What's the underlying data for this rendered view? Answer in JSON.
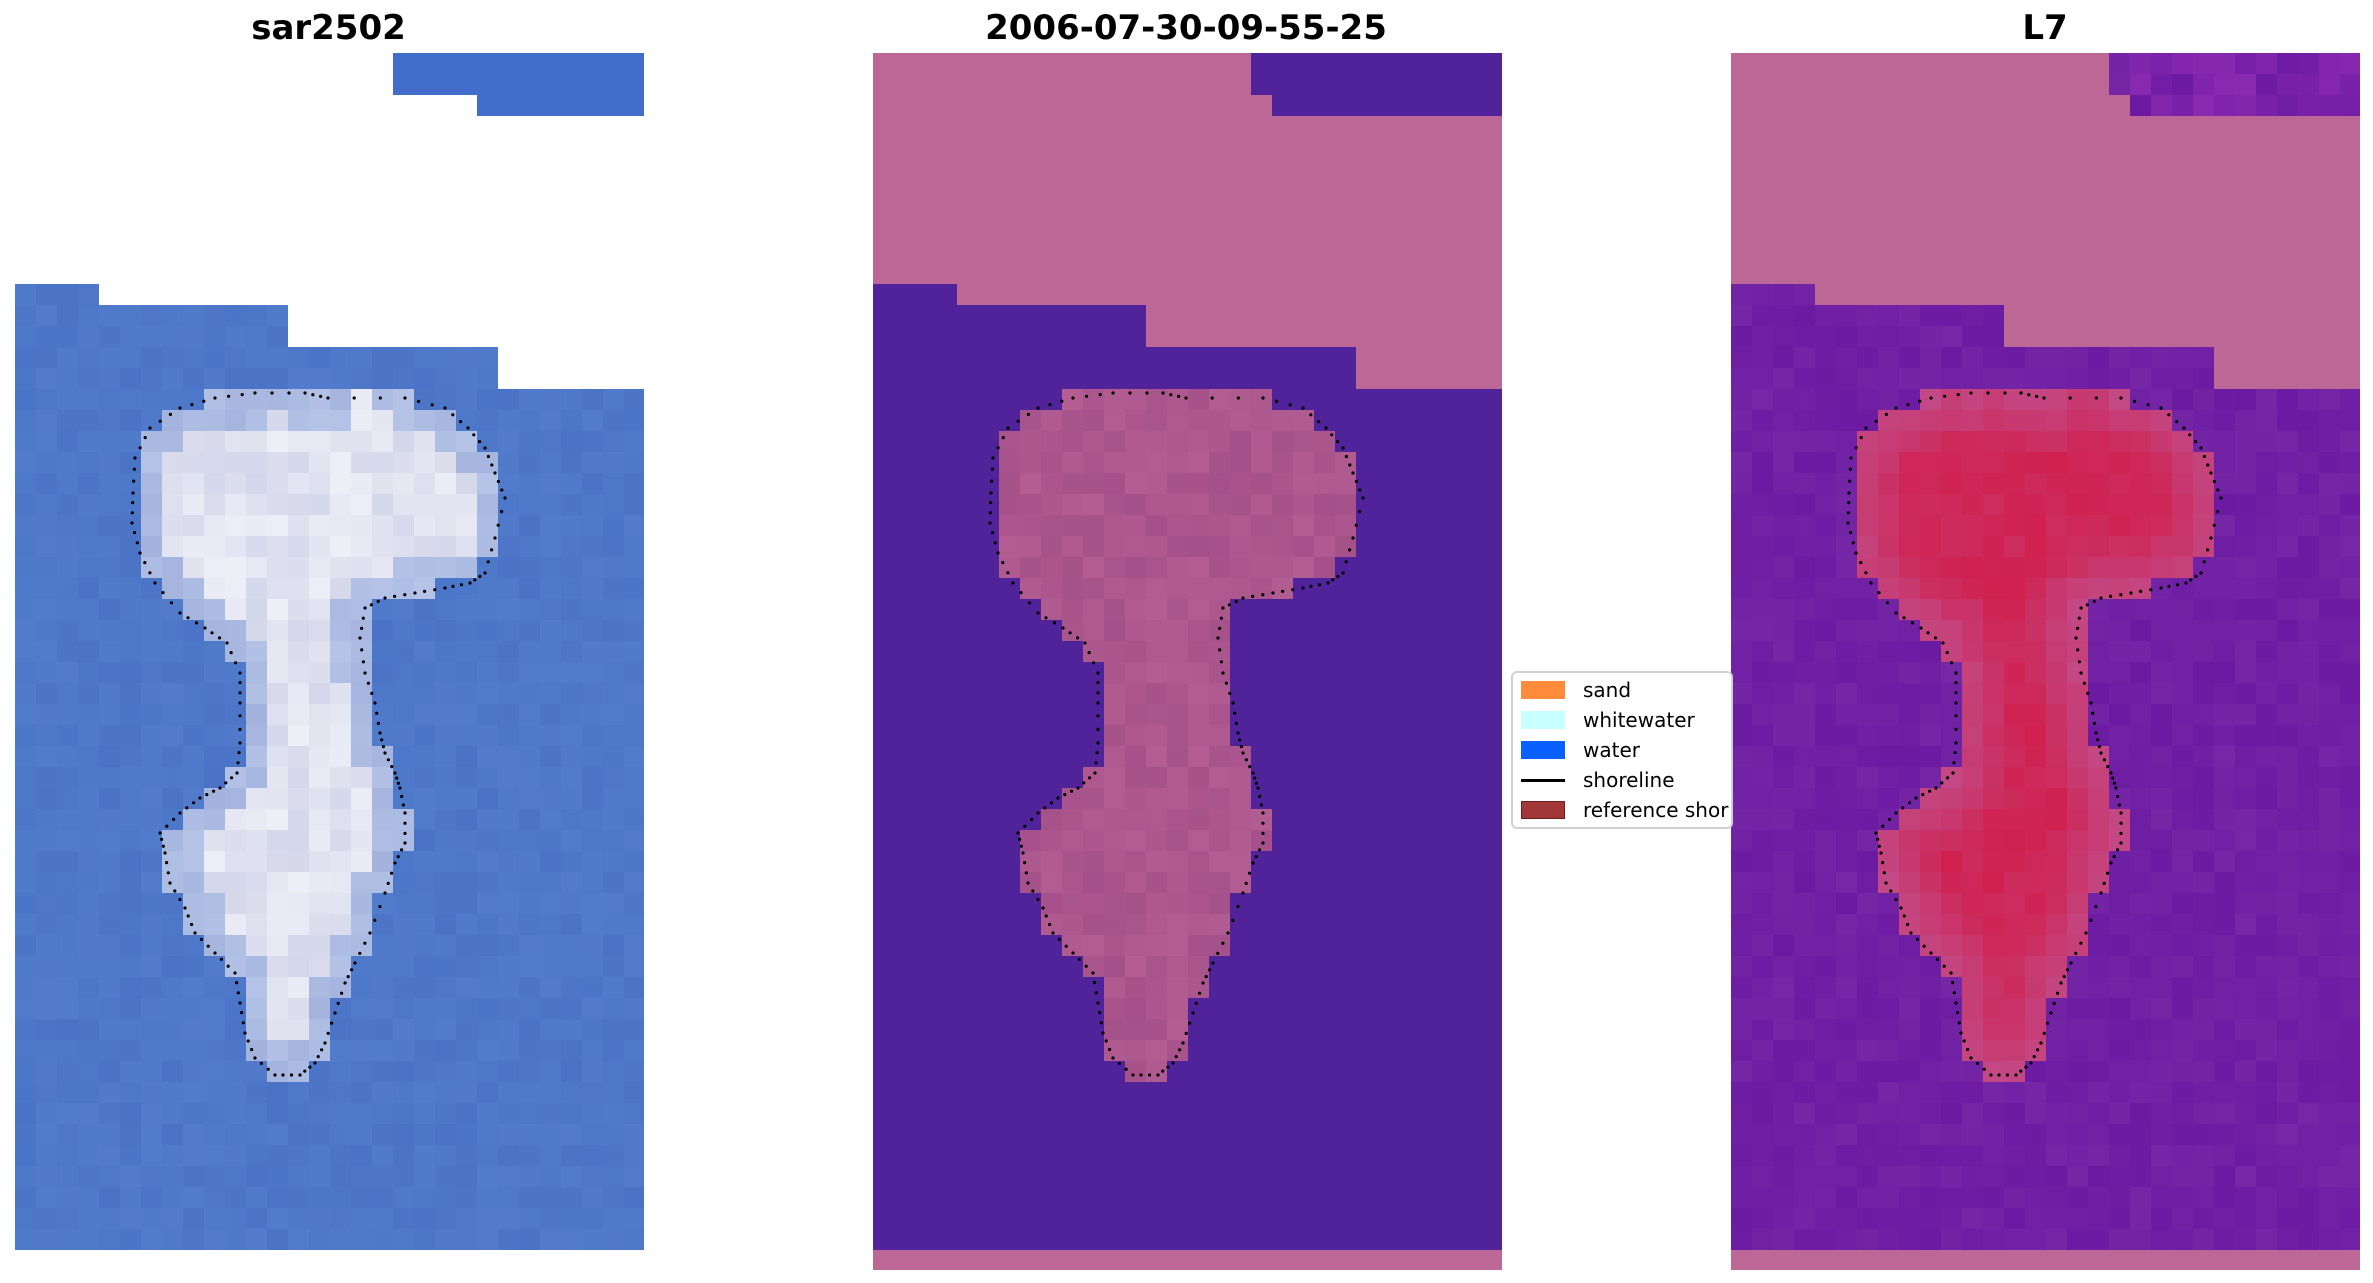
{
  "panels": [
    {
      "title": "sar2502",
      "kind": "rgb"
    },
    {
      "title": "2006-07-30-09-55-25",
      "kind": "classified"
    },
    {
      "title": "L7",
      "kind": "index"
    }
  ],
  "legend": {
    "items": [
      {
        "label": "sand",
        "color": "#ff8c3a",
        "type": "patch"
      },
      {
        "label": "whitewater",
        "color": "#c8ffff",
        "type": "patch"
      },
      {
        "label": "water",
        "color": "#0a60ff",
        "type": "patch"
      },
      {
        "label": "shoreline",
        "color": "#000000",
        "type": "line"
      },
      {
        "label": "reference shor",
        "color": "#a23737",
        "type": "patch"
      }
    ]
  },
  "colors": {
    "rgb_water": "#4a73c7",
    "rgb_cloud": "#d4d6ea",
    "class_mask": "#bd6797",
    "class_water": "#50239a",
    "class_land": "#a4508a",
    "index_low": "#6b1aa2",
    "index_high": "#d0204e",
    "index_mask": "#bd6797"
  }
}
